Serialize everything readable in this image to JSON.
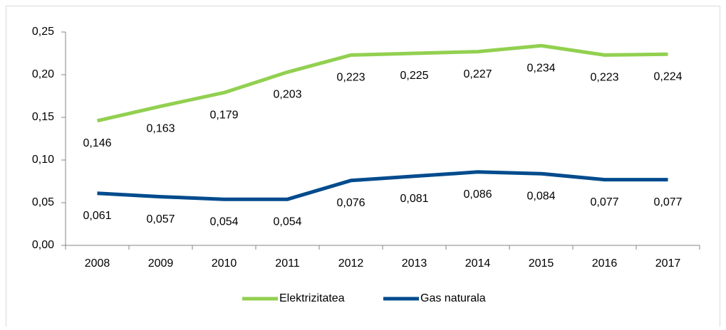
{
  "chart_data": {
    "type": "line",
    "categories": [
      "2008",
      "2009",
      "2010",
      "2011",
      "2012",
      "2013",
      "2014",
      "2015",
      "2016",
      "2017"
    ],
    "series": [
      {
        "name": "Elektrizitatea",
        "color": "#92d050",
        "values": [
          0.146,
          0.163,
          0.179,
          0.203,
          0.223,
          0.225,
          0.227,
          0.234,
          0.223,
          0.224
        ],
        "value_labels": [
          "0,146",
          "0,163",
          "0,179",
          "0,203",
          "0,223",
          "0,225",
          "0,227",
          "0,234",
          "0,223",
          "0,224"
        ]
      },
      {
        "name": "Gas naturala",
        "color": "#004b8d",
        "values": [
          0.061,
          0.057,
          0.054,
          0.054,
          0.076,
          0.081,
          0.086,
          0.084,
          0.077,
          0.077
        ],
        "value_labels": [
          "0,061",
          "0,057",
          "0,054",
          "0,054",
          "0,076",
          "0,081",
          "0,086",
          "0,084",
          "0,077",
          "0,077"
        ]
      }
    ],
    "ylim": [
      0,
      0.25
    ],
    "yticks": [
      {
        "value": 0,
        "label": "0,00"
      },
      {
        "value": 0.05,
        "label": "0,05"
      },
      {
        "value": 0.1,
        "label": "0,10"
      },
      {
        "value": 0.15,
        "label": "0,15"
      },
      {
        "value": 0.2,
        "label": "0,20"
      },
      {
        "value": 0.25,
        "label": "0,25"
      }
    ],
    "legend": "bottom"
  }
}
